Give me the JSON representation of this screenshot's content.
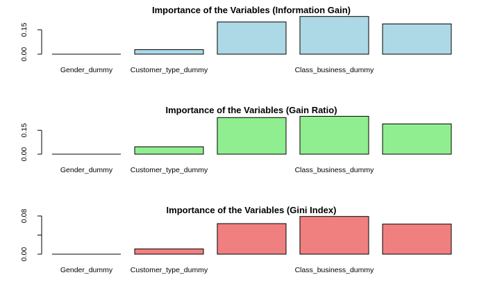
{
  "chart_data": [
    {
      "type": "bar",
      "title": "Importance of the Variables (Information Gain)",
      "xlabel": "",
      "ylabel": "",
      "categories": [
        "Gender_dummy",
        "Customer_type_dummy",
        "",
        "Class_business_dummy",
        ""
      ],
      "values": [
        0.0,
        0.028,
        0.198,
        0.232,
        0.186
      ],
      "yticks": [
        0.0,
        0.15
      ],
      "ytick_labels": [
        "0.00",
        "0.15"
      ],
      "ylim": [
        0,
        0.235
      ],
      "color": "#ADD8E6",
      "grid": false,
      "legend": "none"
    },
    {
      "type": "bar",
      "title": "Importance of the Variables (Gain Ratio)",
      "xlabel": "",
      "ylabel": "",
      "categories": [
        "Gender_dummy",
        "Customer_type_dummy",
        "",
        "Class_business_dummy",
        ""
      ],
      "values": [
        0.0,
        0.046,
        0.23,
        0.238,
        0.19
      ],
      "yticks": [
        0.0,
        0.15
      ],
      "ytick_labels": [
        "0.00",
        "0.15"
      ],
      "ylim": [
        0,
        0.24
      ],
      "color": "#90EE90",
      "grid": false,
      "legend": "none"
    },
    {
      "type": "bar",
      "title": "Importance of the Variables (Gini Index)",
      "xlabel": "",
      "ylabel": "",
      "categories": [
        "Gender_dummy",
        "Customer_type_dummy",
        "",
        "Class_business_dummy",
        ""
      ],
      "values": [
        0.0,
        0.011,
        0.064,
        0.079,
        0.063
      ],
      "yticks": [
        0.0,
        0.04,
        0.08
      ],
      "ytick_labels": [
        "0.00",
        "",
        "0.08"
      ],
      "ylim": [
        0,
        0.08
      ],
      "color": "#F08080",
      "grid": false,
      "legend": "none"
    }
  ]
}
